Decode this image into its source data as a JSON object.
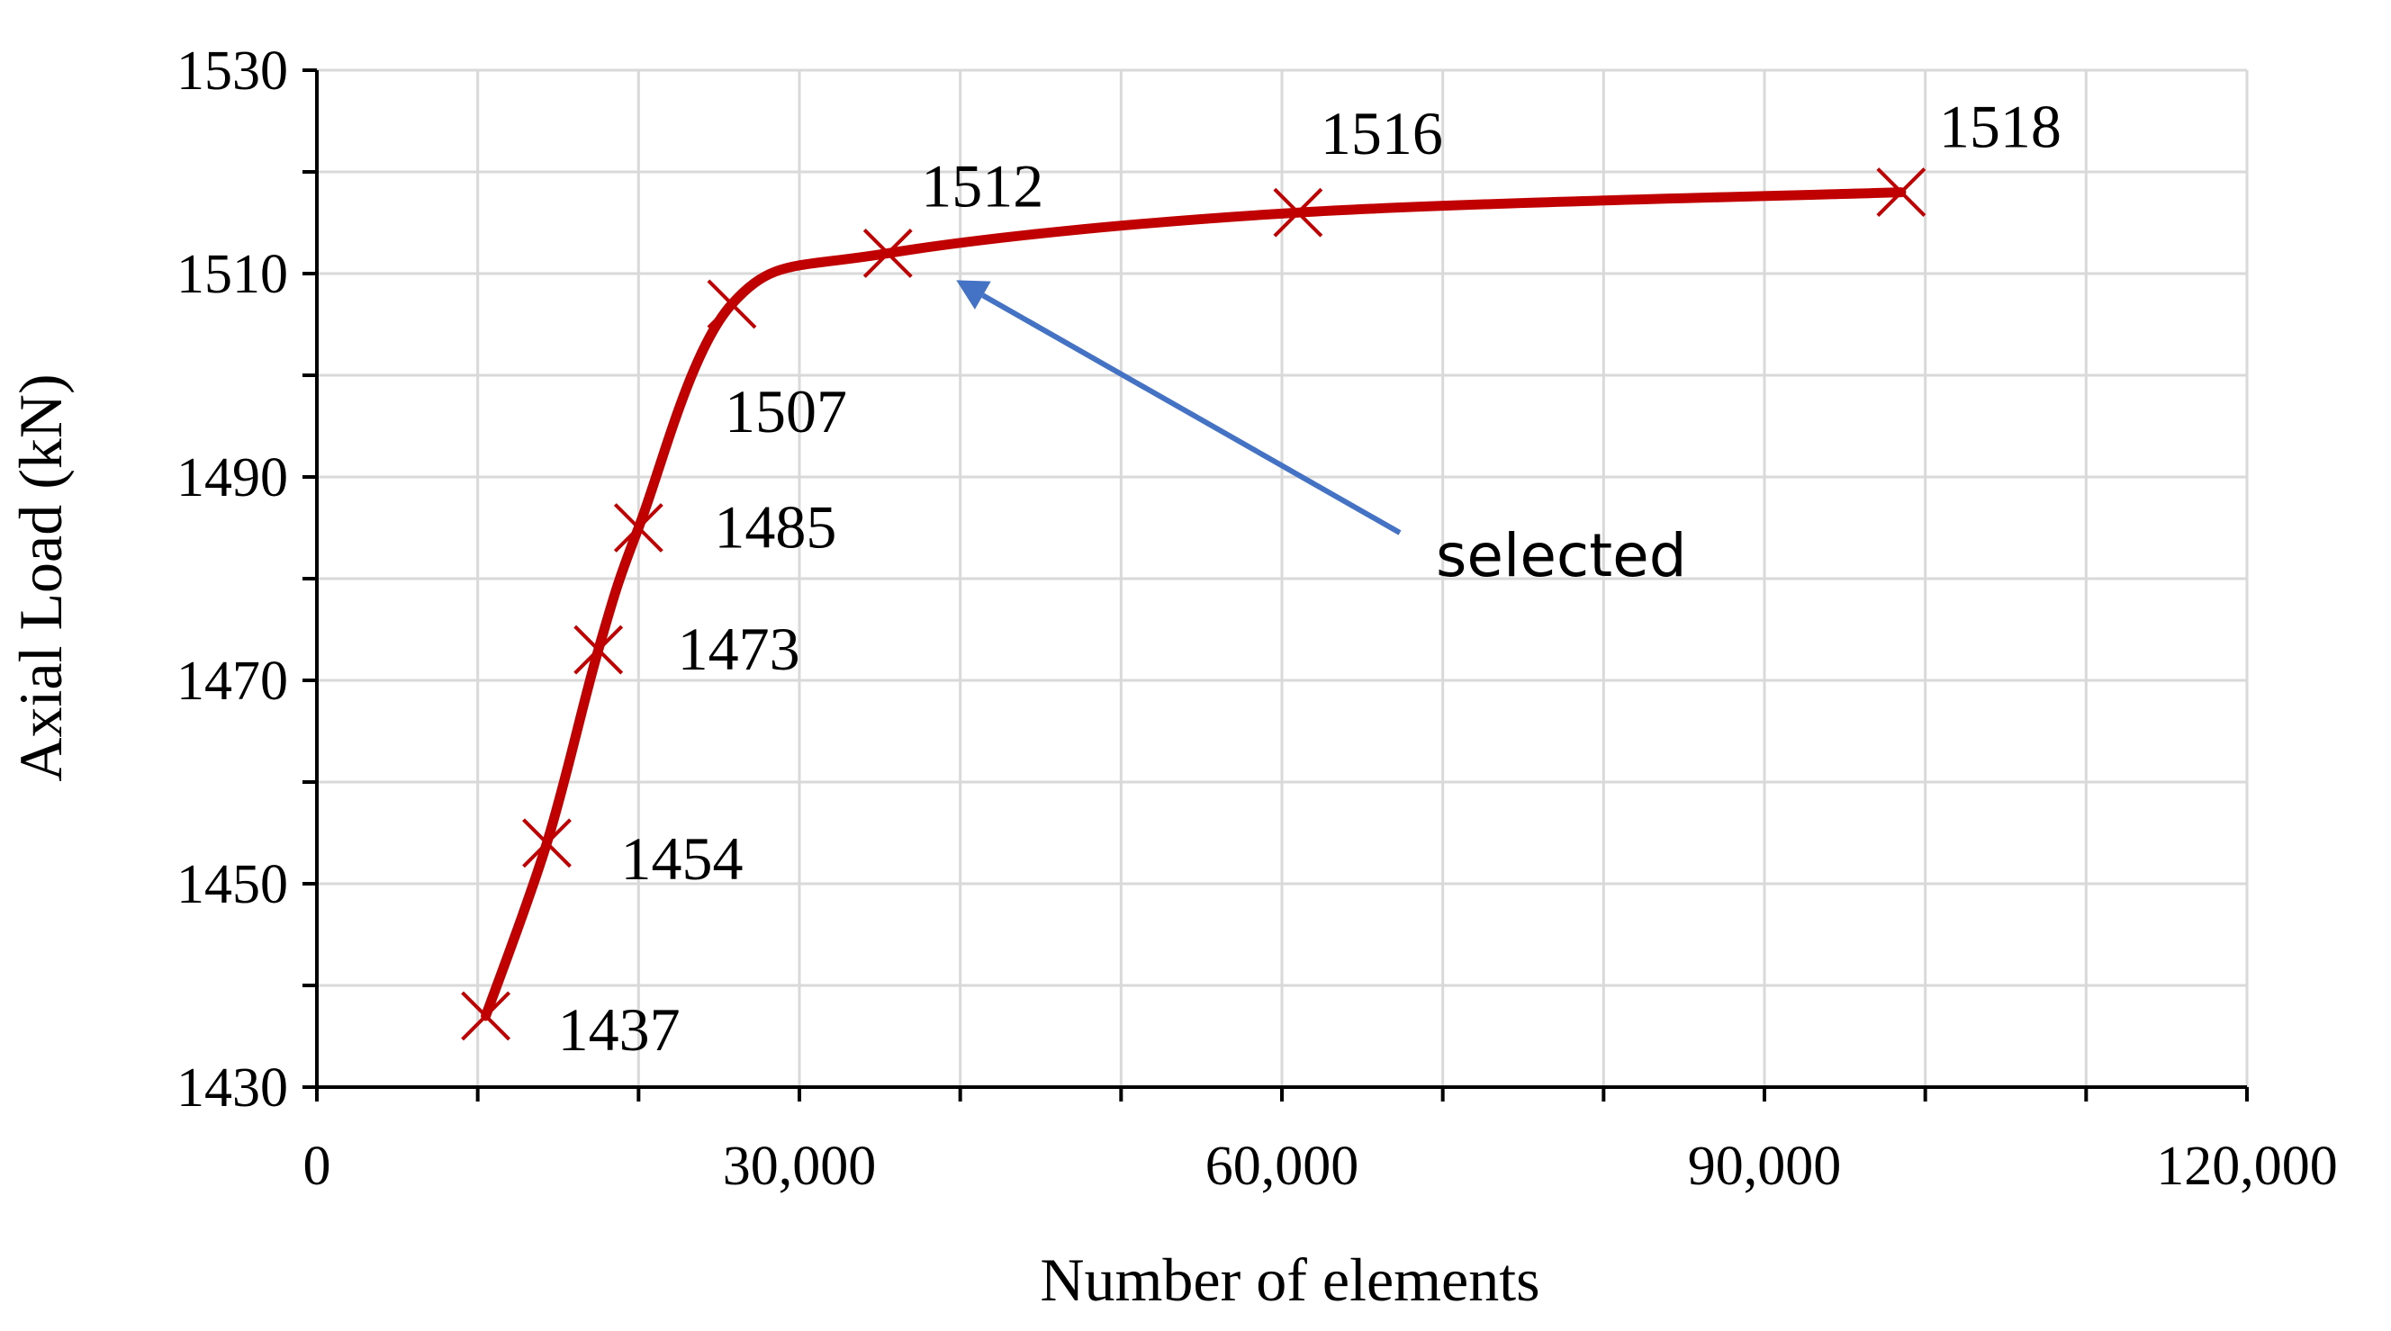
{
  "colors": {
    "series": "#c00000",
    "grid": "#d9d9d9",
    "axis": "#000000",
    "arrow": "#4472c4"
  },
  "chart_data": {
    "type": "line",
    "title": "",
    "xlabel": "Number of elements",
    "ylabel": "Axial Load (kN)",
    "xlim": [
      0,
      120000
    ],
    "ylim": [
      1430,
      1530
    ],
    "x_ticks": [
      0,
      30000,
      60000,
      90000,
      120000
    ],
    "x_tick_labels": [
      "0",
      "30,000",
      "60,000",
      "90,000",
      "120,000"
    ],
    "x_minor_step": 10000,
    "y_ticks": [
      1430,
      1450,
      1470,
      1490,
      1510,
      1530
    ],
    "y_tick_labels": [
      "1430",
      "1450",
      "1470",
      "1490",
      "1510",
      "1530"
    ],
    "y_minor_step": 10,
    "grid": true,
    "marker": "x",
    "smoothed": true,
    "series": [
      {
        "x": [
          10500,
          14300,
          17500,
          20000,
          25800,
          35500,
          61000,
          98500
        ],
        "y": [
          1437,
          1454,
          1473,
          1485,
          1507,
          1512,
          1516,
          1518
        ],
        "labels": [
          "1437",
          "1454",
          "1473",
          "1485",
          "1507",
          "1512",
          "1516",
          "1518"
        ]
      }
    ],
    "annotations": [
      {
        "text": "selected",
        "target_x": 35500,
        "target_y": 1512
      }
    ]
  }
}
